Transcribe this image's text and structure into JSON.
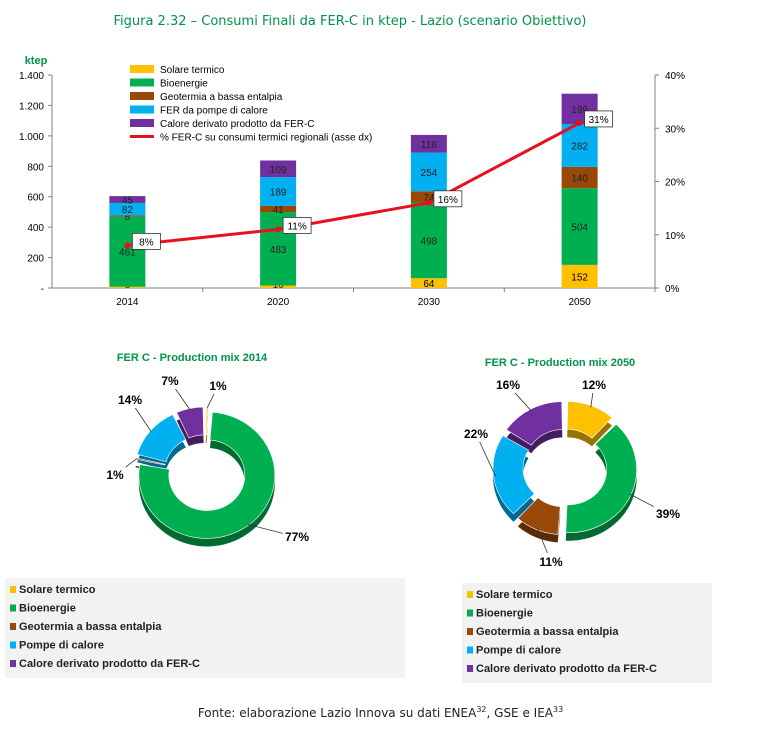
{
  "figure_title": "Figura 2.32 – Consumi Finali da FER-C in ktep - Lazio (scenario Obiettivo)",
  "source": {
    "text_before": "Fonte: elaborazione Lazio Innova su dati ENEA",
    "ref1": "32",
    "text_mid": ", GSE e IEA",
    "ref2": "33"
  },
  "colors": {
    "solare": "#ffc000",
    "bioenergie": "#00b050",
    "geotermia": "#984807",
    "pompe": "#00b0f0",
    "calore": "#7030a0",
    "line": "#e8101c"
  },
  "chart_data": [
    {
      "type": "bar",
      "stacked": true,
      "categories": [
        "2014",
        "2020",
        "2030",
        "2050"
      ],
      "ylabel": "ktep",
      "ylim": [
        0,
        1400
      ],
      "yticks": [
        "-",
        "200",
        "400",
        "600",
        "800",
        "1.000",
        "1.200",
        "1.400"
      ],
      "y2lim": [
        0,
        40
      ],
      "y2ticks": [
        "0%",
        "10%",
        "20%",
        "30%",
        "40%"
      ],
      "grid": false,
      "legend_position": "top-left",
      "series": [
        {
          "name": "Solare termico",
          "color_key": "solare",
          "values": [
            8,
            16,
            64,
            152
          ]
        },
        {
          "name": "Bioenergie",
          "color_key": "bioenergie",
          "values": [
            461,
            483,
            498,
            504
          ]
        },
        {
          "name": "Geotermia a bassa entalpia",
          "color_key": "geotermia",
          "values": [
            8,
            41,
            74,
            140
          ]
        },
        {
          "name": "FER da pompe di calore",
          "color_key": "pompe",
          "values": [
            82,
            189,
            254,
            282
          ]
        },
        {
          "name": "Calore derivato prodotto da FER-C",
          "color_key": "calore",
          "values": [
            45,
            109,
            116,
            199
          ]
        }
      ],
      "labels": [
        [
          "8",
          "16",
          "64",
          "152"
        ],
        [
          "461",
          "483",
          "498",
          "504"
        ],
        [
          "8",
          "41",
          "74",
          "140"
        ],
        [
          "82",
          "189",
          "254",
          "282"
        ],
        [
          "45",
          "109",
          "116",
          "199"
        ]
      ],
      "line_series": {
        "name": "% FER-C su consumi termici regionali  (asse dx)",
        "values": [
          8,
          11,
          16,
          31
        ],
        "labels": [
          "8%",
          "11%",
          "16%",
          "31%"
        ]
      }
    },
    {
      "type": "pie",
      "donut": true,
      "title": "FER C - Production mix 2014",
      "slices": [
        {
          "name": "Solare termico",
          "color_key": "solare",
          "value": 1,
          "label": "1%"
        },
        {
          "name": "Bioenergie",
          "color_key": "bioenergie",
          "value": 77,
          "label": "77%"
        },
        {
          "name": "Geotermia a bassa entalpia",
          "color_key": "geotermia",
          "value": 1,
          "label": "1%"
        },
        {
          "name": "Pompe di calore",
          "color_key": "pompe",
          "value": 14,
          "label": "14%"
        },
        {
          "name": "Calore derivato prodotto da FER-C",
          "color_key": "calore",
          "value": 7,
          "label": "7%"
        }
      ]
    },
    {
      "type": "pie",
      "donut": true,
      "title": "FER C - Production mix 2050",
      "slices": [
        {
          "name": "Solare termico",
          "color_key": "solare",
          "value": 12,
          "label": "12%"
        },
        {
          "name": "Bioenergie",
          "color_key": "bioenergie",
          "value": 39,
          "label": "39%"
        },
        {
          "name": "Geotermia a bassa entalpia",
          "color_key": "geotermia",
          "value": 11,
          "label": "11%"
        },
        {
          "name": "Pompe di calore",
          "color_key": "pompe",
          "value": 22,
          "label": "22%"
        },
        {
          "name": "Calore derivato prodotto da FER-C",
          "color_key": "calore",
          "value": 16,
          "label": "16%"
        }
      ]
    }
  ]
}
